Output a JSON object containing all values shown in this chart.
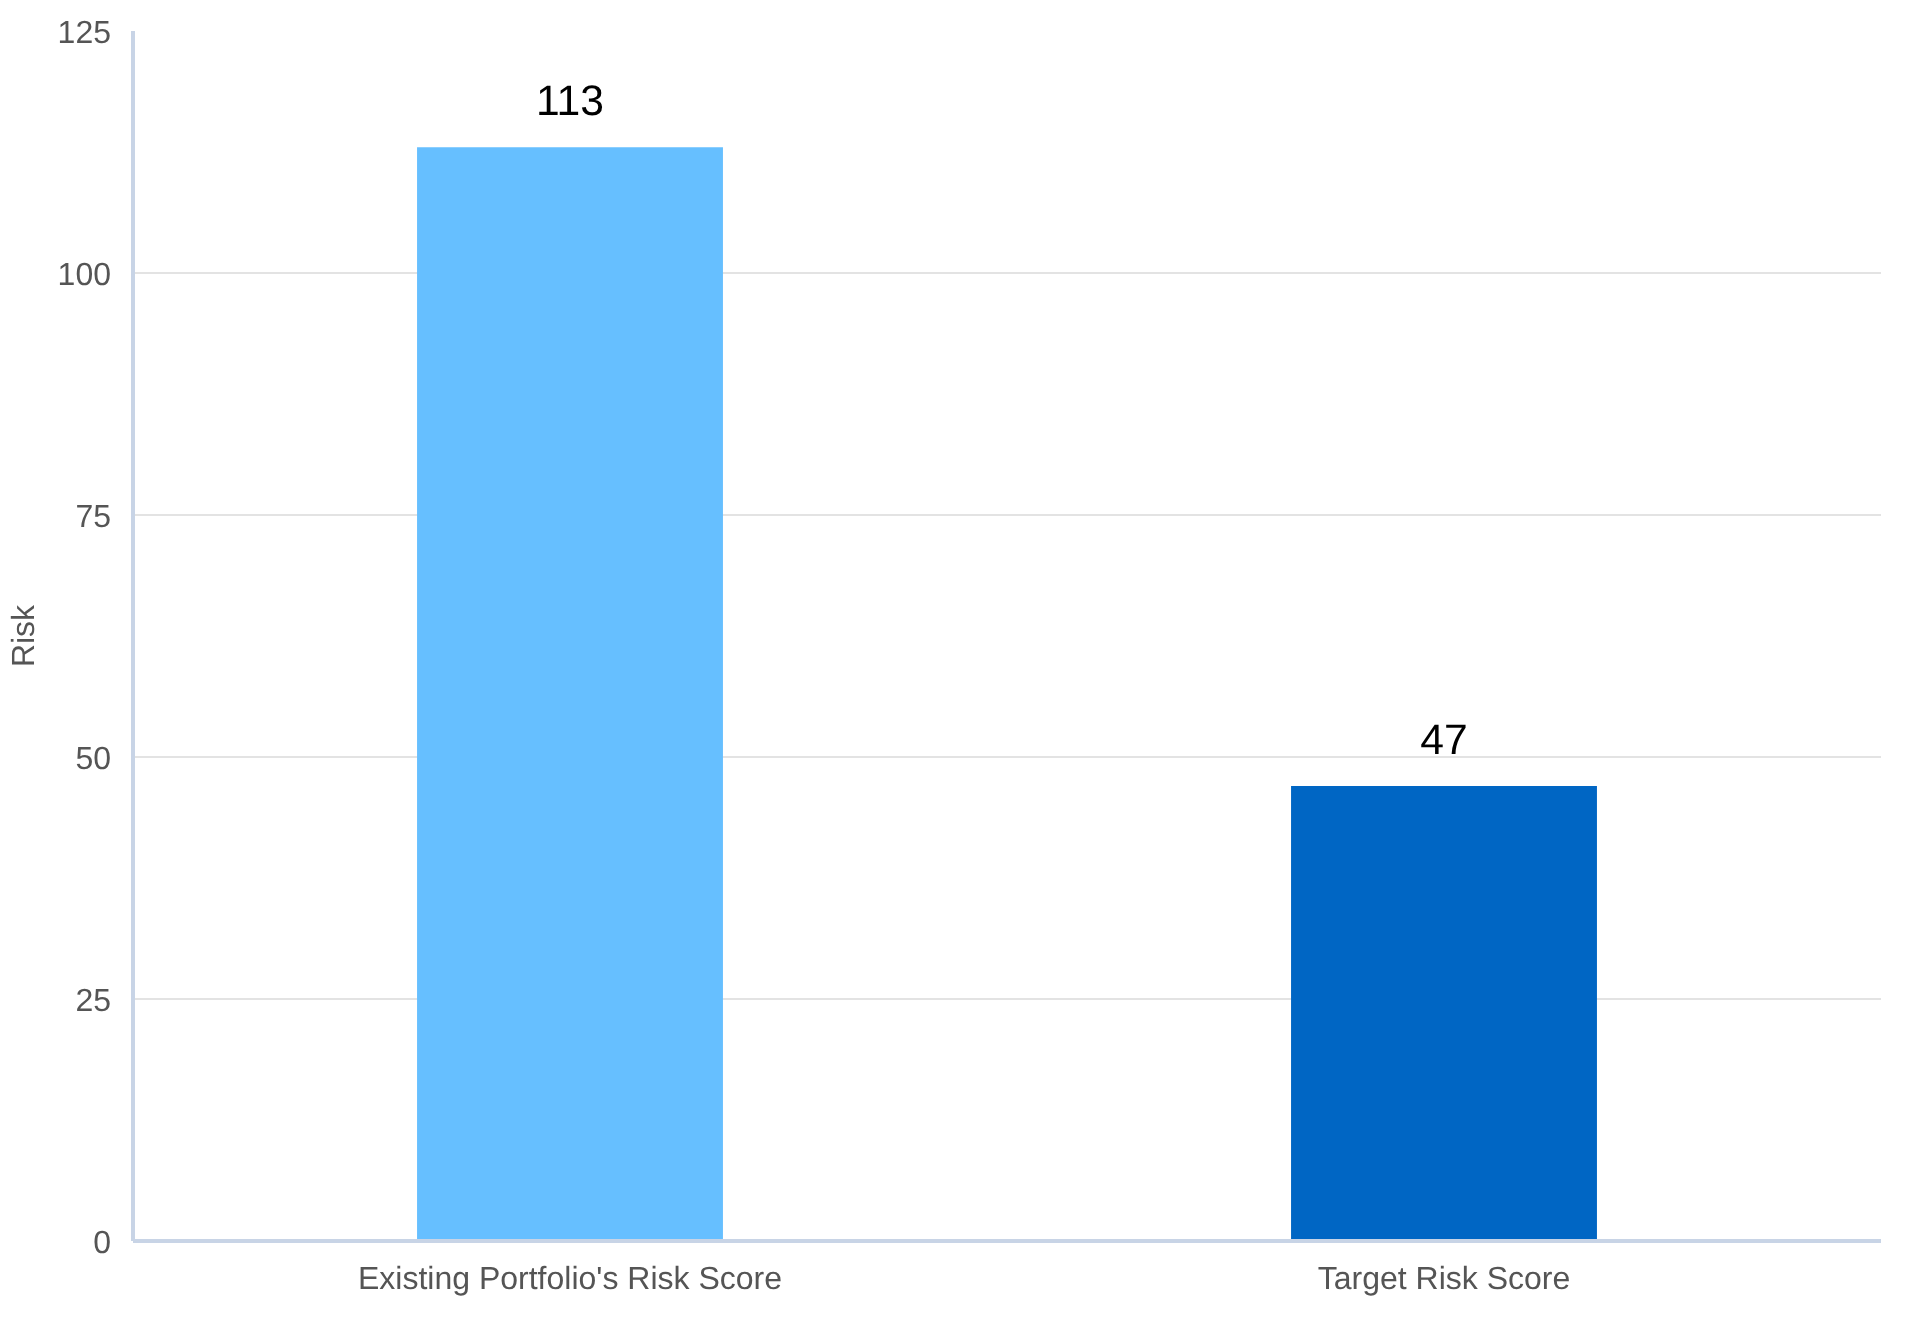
{
  "chart_data": {
    "type": "bar",
    "ylabel": "Risk",
    "categories": [
      "Existing Portfolio's Risk Score",
      "Target Risk Score"
    ],
    "values": [
      113,
      47
    ],
    "colors": [
      "#66bfff",
      "#0066c4"
    ],
    "ylim": [
      0,
      125
    ],
    "yticks": [
      0,
      25,
      50,
      75,
      100,
      125
    ],
    "grid": "y",
    "data_labels": true
  }
}
